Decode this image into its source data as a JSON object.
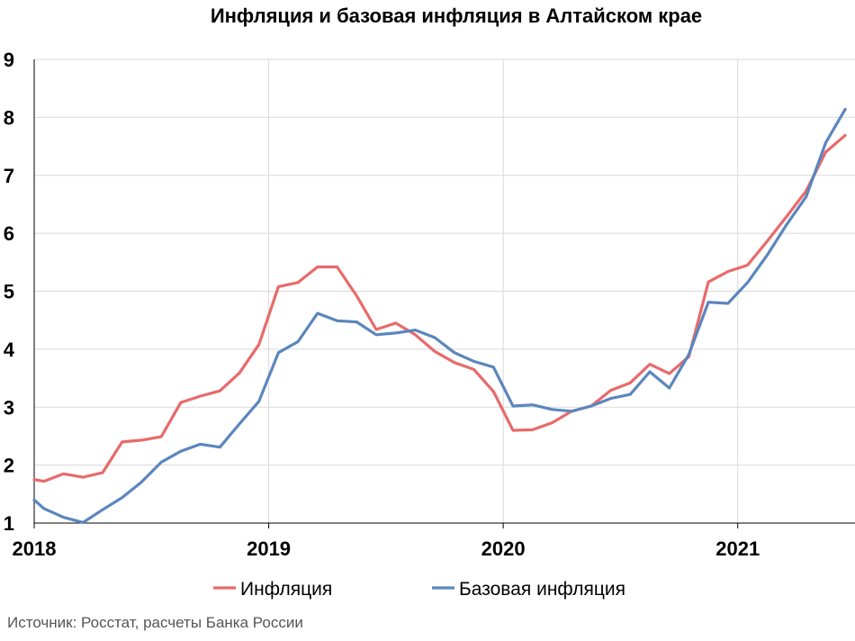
{
  "chart_data": {
    "type": "line",
    "title": "Инфляция и базовая инфляция в Алтайском крае",
    "xlabel": "",
    "ylabel": "",
    "ylim": [
      1,
      9
    ],
    "y_ticks": [
      "1",
      "2",
      "3",
      "4",
      "5",
      "6",
      "7",
      "8",
      "9"
    ],
    "x_ticks": [
      "2018",
      "2019",
      "2020",
      "2021"
    ],
    "x_tick_positions": [
      2018,
      2019,
      2020,
      2021
    ],
    "xlim": [
      2018,
      2021.5
    ],
    "grid": true,
    "legend_position": "bottom",
    "colors": {
      "Инфляция": "#E86A6A",
      "Базовая инфляция": "#5B86BD"
    },
    "series": [
      {
        "name": "Инфляция",
        "color": "#E86A6A",
        "x": [
          2018,
          2018.0417,
          2018.125,
          2018.2083,
          2018.2917,
          2018.375,
          2018.4583,
          2018.5417,
          2018.625,
          2018.7083,
          2018.7917,
          2018.875,
          2018.9583,
          2019.0417,
          2019.125,
          2019.2083,
          2019.2917,
          2019.375,
          2019.4583,
          2019.5417,
          2019.625,
          2019.7083,
          2019.7917,
          2019.875,
          2019.9583,
          2020.0417,
          2020.125,
          2020.2083,
          2020.2917,
          2020.375,
          2020.4583,
          2020.5417,
          2020.625,
          2020.7083,
          2020.7917,
          2020.875,
          2020.9583,
          2021.0417,
          2021.125,
          2021.2083,
          2021.2917,
          2021.375,
          2021.4583
        ],
        "values": [
          1.75,
          1.72,
          1.85,
          1.79,
          1.87,
          2.4,
          2.43,
          2.49,
          3.08,
          3.19,
          3.28,
          3.59,
          4.08,
          5.08,
          5.15,
          5.42,
          5.42,
          4.92,
          4.34,
          4.45,
          4.25,
          3.96,
          3.77,
          3.65,
          3.27,
          2.6,
          2.61,
          2.73,
          2.93,
          3.02,
          3.29,
          3.42,
          3.74,
          3.58,
          3.87,
          5.16,
          5.34,
          5.45,
          5.86,
          6.29,
          6.73,
          7.4,
          7.69
        ]
      },
      {
        "name": "Базовая инфляция",
        "color": "#5B86BD",
        "x": [
          2018,
          2018.0417,
          2018.125,
          2018.2083,
          2018.2917,
          2018.375,
          2018.4583,
          2018.5417,
          2018.625,
          2018.7083,
          2018.7917,
          2018.875,
          2018.9583,
          2019.0417,
          2019.125,
          2019.2083,
          2019.2917,
          2019.375,
          2019.4583,
          2019.5417,
          2019.625,
          2019.7083,
          2019.7917,
          2019.875,
          2019.9583,
          2020.0417,
          2020.125,
          2020.2083,
          2020.2917,
          2020.375,
          2020.4583,
          2020.5417,
          2020.625,
          2020.7083,
          2020.7917,
          2020.875,
          2020.9583,
          2021.0417,
          2021.125,
          2021.2083,
          2021.2917,
          2021.375,
          2021.4583
        ],
        "values": [
          1.4,
          1.25,
          1.1,
          1.01,
          1.23,
          1.44,
          1.71,
          2.05,
          2.24,
          2.36,
          2.31,
          2.71,
          3.1,
          3.94,
          4.13,
          4.62,
          4.49,
          4.47,
          4.25,
          4.28,
          4.33,
          4.2,
          3.94,
          3.79,
          3.69,
          3.02,
          3.04,
          2.96,
          2.93,
          3.02,
          3.15,
          3.22,
          3.61,
          3.33,
          3.91,
          4.81,
          4.79,
          5.15,
          5.62,
          6.15,
          6.63,
          7.56,
          8.14
        ]
      }
    ]
  },
  "source_text": "Источник: Росстат, расчеты Банка России"
}
